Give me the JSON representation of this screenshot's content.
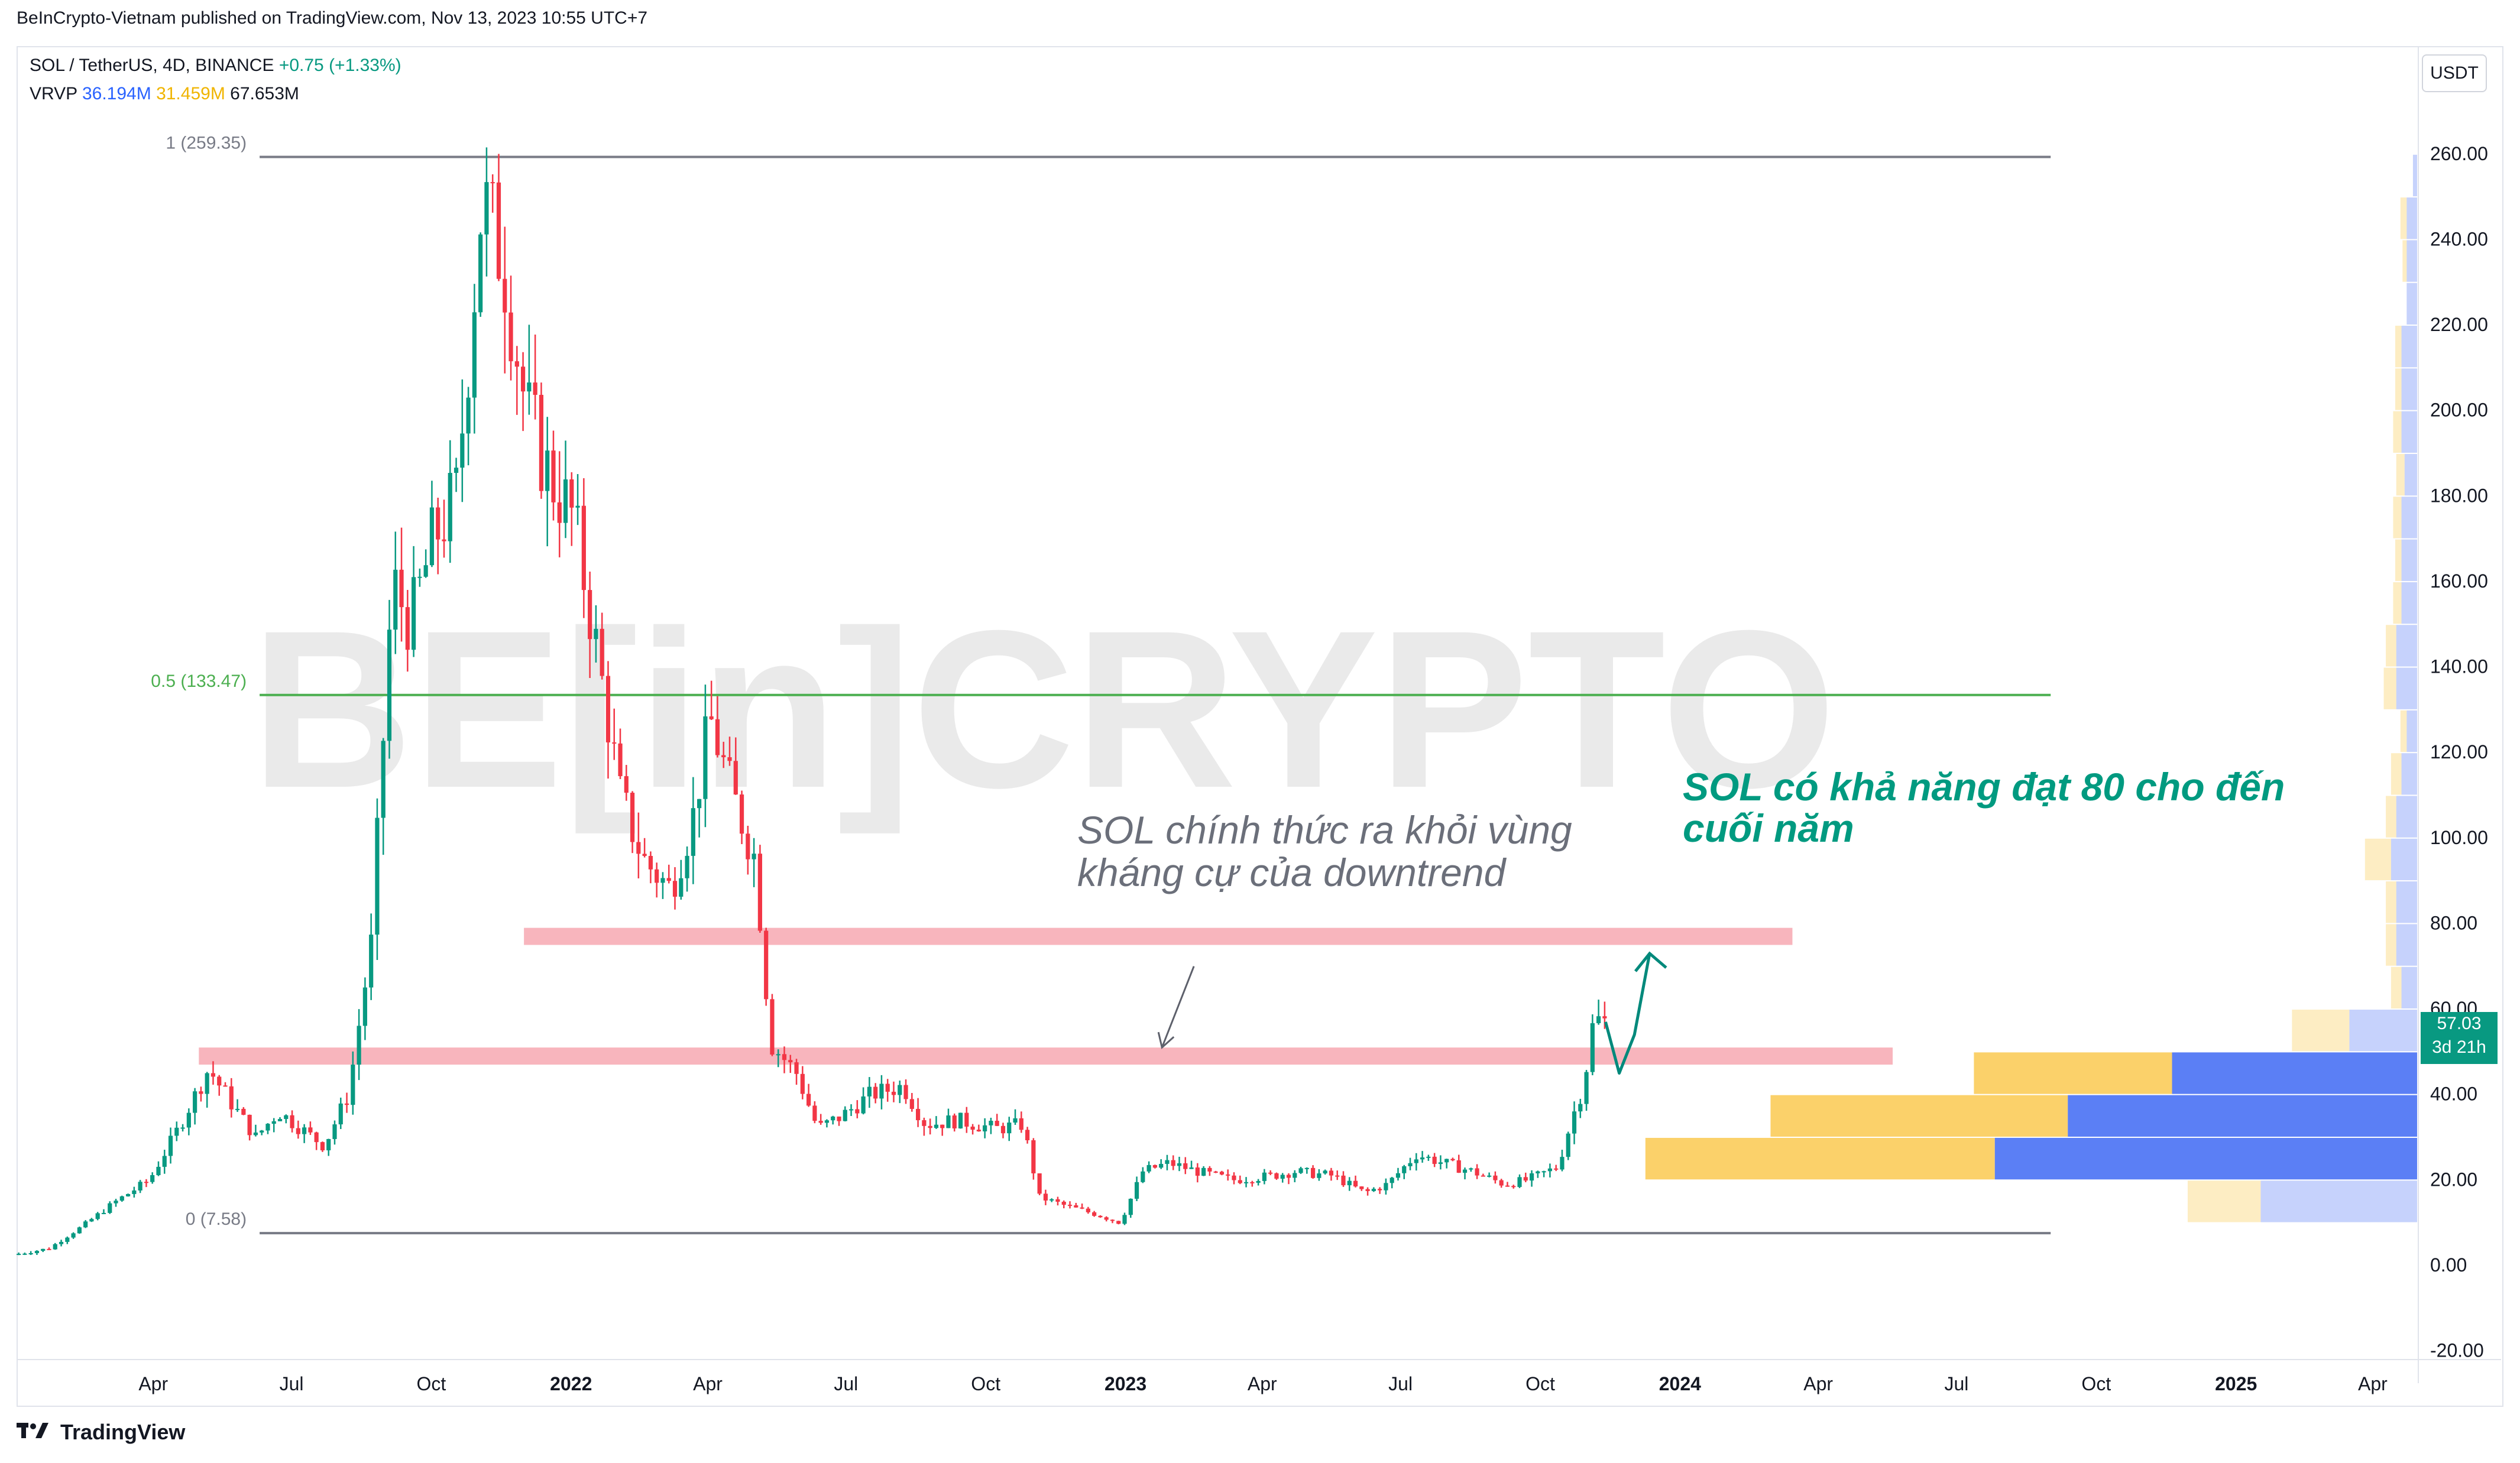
{
  "published_line": "BeInCrypto-Vietnam published on TradingView.com, Nov 13, 2023 10:55 UTC+7",
  "legend": {
    "symbol": "SOL / TetherUS, 4D, BINANCE",
    "change": "+0.75 (+1.33%)",
    "vrvp_label": "VRVP",
    "vrvp_up": "36.194M",
    "vrvp_down": "31.459M",
    "vrvp_total": "67.653M"
  },
  "currency_button": "USDT",
  "watermark": "BE[in]CRYPTO",
  "annotations": {
    "resistance_note_line1": "SOL chính thức ra khỏi vùng",
    "resistance_note_line2": "kháng cự của downtrend",
    "target_note_line1": "SOL có khả năng đạt 80 cho đến",
    "target_note_line2": "cuối năm"
  },
  "price_tag": {
    "price": "57.03",
    "countdown": "3d 21h"
  },
  "footer_brand": "TradingView",
  "colors": {
    "up": "#089981",
    "down": "#f23645",
    "fib_mid": "#4caf50",
    "fib_edge": "#787b86",
    "zone": "#f7a8b1",
    "vol_up": "#5b7ff5",
    "vol_down": "#fbd16a",
    "arrow": "#00897b"
  },
  "chart_data": {
    "type": "candlestick",
    "y_axis": {
      "ticks": [
        260,
        240,
        220,
        200,
        180,
        160,
        140,
        120,
        100,
        80,
        60,
        40,
        20,
        0,
        -20
      ],
      "tick_labels": [
        "260.00",
        "240.00",
        "220.00",
        "200.00",
        "180.00",
        "160.00",
        "140.00",
        "120.00",
        "100.00",
        "80.00",
        "60.00",
        "40.00",
        "20.00",
        "0.00",
        "-20.00"
      ],
      "ylim": [
        -22,
        285
      ]
    },
    "x_axis": {
      "ticks": [
        "2021-04-01",
        "2021-07-01",
        "2021-10-01",
        "2022-01-01",
        "2022-04-01",
        "2022-07-01",
        "2022-10-01",
        "2023-01-01",
        "2023-04-01",
        "2023-07-01",
        "2023-10-01",
        "2024-01-01",
        "2024-04-01",
        "2024-07-01",
        "2024-10-01",
        "2025-01-01",
        "2025-04-01"
      ],
      "tick_labels": [
        "Apr",
        "Jul",
        "Oct",
        "2022",
        "Apr",
        "Jul",
        "Oct",
        "2023",
        "Apr",
        "Jul",
        "Oct",
        "2024",
        "Apr",
        "Jul",
        "Oct",
        "2025",
        "Apr"
      ],
      "bold_labels": [
        "2022",
        "2023",
        "2024",
        "2025"
      ],
      "range": [
        "2021-01-01",
        "2025-05-01"
      ]
    },
    "fibonacci": [
      {
        "label": "1 (259.35)",
        "value": 259.35,
        "from": "2021-06-10",
        "to": "2024-09-01"
      },
      {
        "label": "0.5 (133.47)",
        "value": 133.47,
        "from": "2021-06-10",
        "to": "2024-09-01"
      },
      {
        "label": "0 (7.58)",
        "value": 7.58,
        "from": "2021-06-10",
        "to": "2024-09-01"
      }
    ],
    "zones": [
      {
        "name": "upper resistance",
        "low": 75,
        "high": 79,
        "from": "2021-12-01",
        "to": "2024-03-15"
      },
      {
        "name": "broken resistance",
        "low": 47,
        "high": 51,
        "from": "2021-05-01",
        "to": "2024-05-20"
      }
    ],
    "price_path": [
      [
        "2021-01-01",
        2.5
      ],
      [
        "2021-01-25",
        4
      ],
      [
        "2021-02-15",
        9
      ],
      [
        "2021-03-10",
        15
      ],
      [
        "2021-04-01",
        20
      ],
      [
        "2021-04-20",
        32
      ],
      [
        "2021-05-10",
        46
      ],
      [
        "2021-05-25",
        38
      ],
      [
        "2021-06-10",
        30
      ],
      [
        "2021-06-25",
        36
      ],
      [
        "2021-07-10",
        32
      ],
      [
        "2021-07-25",
        28
      ],
      [
        "2021-08-10",
        40
      ],
      [
        "2021-08-25",
        75
      ],
      [
        "2021-09-08",
        160
      ],
      [
        "2021-09-20",
        150
      ],
      [
        "2021-10-05",
        170
      ],
      [
        "2021-10-20",
        180
      ],
      [
        "2021-11-06",
        250
      ],
      [
        "2021-11-20",
        235
      ],
      [
        "2021-12-05",
        200
      ],
      [
        "2021-12-20",
        185
      ],
      [
        "2022-01-05",
        175
      ],
      [
        "2022-01-20",
        145
      ],
      [
        "2022-02-05",
        110
      ],
      [
        "2022-02-20",
        95
      ],
      [
        "2022-03-10",
        88
      ],
      [
        "2022-03-25",
        105
      ],
      [
        "2022-04-05",
        128
      ],
      [
        "2022-04-20",
        110
      ],
      [
        "2022-05-05",
        95
      ],
      [
        "2022-05-15",
        52
      ],
      [
        "2022-06-01",
        45
      ],
      [
        "2022-06-15",
        32
      ],
      [
        "2022-07-01",
        35
      ],
      [
        "2022-07-20",
        40
      ],
      [
        "2022-08-10",
        42
      ],
      [
        "2022-08-25",
        33
      ],
      [
        "2022-09-15",
        34
      ],
      [
        "2022-10-10",
        32
      ],
      [
        "2022-10-28",
        33
      ],
      [
        "2022-11-08",
        16
      ],
      [
        "2022-11-25",
        14
      ],
      [
        "2022-12-15",
        12
      ],
      [
        "2022-12-31",
        10
      ],
      [
        "2023-01-15",
        22
      ],
      [
        "2023-02-01",
        24
      ],
      [
        "2023-02-20",
        22
      ],
      [
        "2023-03-15",
        20
      ],
      [
        "2023-04-10",
        21
      ],
      [
        "2023-04-25",
        22
      ],
      [
        "2023-05-20",
        21
      ],
      [
        "2023-06-10",
        17
      ],
      [
        "2023-06-25",
        19
      ],
      [
        "2023-07-14",
        26
      ],
      [
        "2023-08-01",
        24
      ],
      [
        "2023-08-20",
        22
      ],
      [
        "2023-09-10",
        19
      ],
      [
        "2023-09-25",
        20
      ],
      [
        "2023-10-15",
        23
      ],
      [
        "2023-10-25",
        35
      ],
      [
        "2023-11-01",
        42
      ],
      [
        "2023-11-08",
        58
      ],
      [
        "2023-11-13",
        57
      ]
    ],
    "projection": [
      [
        "2023-11-13",
        57
      ],
      [
        "2023-11-22",
        45
      ],
      [
        "2023-12-02",
        54
      ],
      [
        "2023-12-12",
        73
      ]
    ],
    "volume_profile": [
      {
        "low": 250,
        "high": 260,
        "up": 0.004,
        "down": 0.0
      },
      {
        "low": 240,
        "high": 250,
        "up": 0.01,
        "down": 0.006
      },
      {
        "low": 230,
        "high": 240,
        "up": 0.01,
        "down": 0.004
      },
      {
        "low": 220,
        "high": 230,
        "up": 0.01,
        "down": 0.0
      },
      {
        "low": 210,
        "high": 220,
        "up": 0.015,
        "down": 0.006
      },
      {
        "low": 200,
        "high": 210,
        "up": 0.015,
        "down": 0.006
      },
      {
        "low": 190,
        "high": 200,
        "up": 0.015,
        "down": 0.008
      },
      {
        "low": 180,
        "high": 190,
        "up": 0.012,
        "down": 0.008
      },
      {
        "low": 170,
        "high": 180,
        "up": 0.015,
        "down": 0.008
      },
      {
        "low": 160,
        "high": 170,
        "up": 0.015,
        "down": 0.006
      },
      {
        "low": 150,
        "high": 160,
        "up": 0.015,
        "down": 0.008
      },
      {
        "low": 140,
        "high": 150,
        "up": 0.02,
        "down": 0.01
      },
      {
        "low": 130,
        "high": 140,
        "up": 0.02,
        "down": 0.012
      },
      {
        "low": 120,
        "high": 130,
        "up": 0.01,
        "down": 0.006
      },
      {
        "low": 110,
        "high": 120,
        "up": 0.015,
        "down": 0.01
      },
      {
        "low": 100,
        "high": 110,
        "up": 0.02,
        "down": 0.01
      },
      {
        "low": 90,
        "high": 100,
        "up": 0.025,
        "down": 0.025
      },
      {
        "low": 80,
        "high": 90,
        "up": 0.02,
        "down": 0.01
      },
      {
        "low": 70,
        "high": 80,
        "up": 0.02,
        "down": 0.01
      },
      {
        "low": 60,
        "high": 70,
        "up": 0.015,
        "down": 0.01
      },
      {
        "low": 50,
        "high": 60,
        "up": 0.065,
        "down": 0.055
      },
      {
        "low": 40,
        "high": 50,
        "up": 0.235,
        "down": 0.19
      },
      {
        "low": 30,
        "high": 40,
        "up": 0.335,
        "down": 0.285
      },
      {
        "low": 20,
        "high": 30,
        "up": 0.405,
        "down": 0.335
      },
      {
        "low": 10,
        "high": 20,
        "up": 0.15,
        "down": 0.07
      }
    ]
  }
}
